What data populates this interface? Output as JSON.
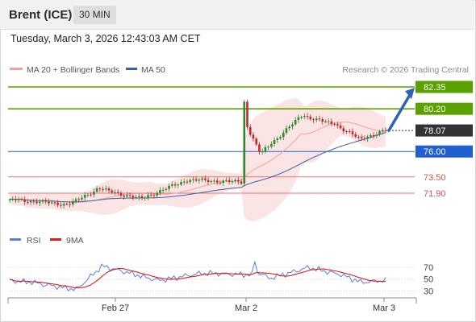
{
  "header": {
    "instrument": "Brent (ICE)",
    "timeframe": "30 MIN",
    "datetime": "Tuesday, March 3, 2026 12:43:03 AM CET"
  },
  "credit": "Research © 2026 Trading Central",
  "colors": {
    "resistance": "#5aa100",
    "pivot": "#1f5fd0",
    "support": "#f07070",
    "current": "#333333",
    "ma20": "#f3a0a0",
    "ma50": "#3b5fa8",
    "bollinger_fill": "#fbe1e1",
    "candle_up": "#2f8a2f",
    "candle_down": "#c0292b",
    "rsi": "#5b7fd8",
    "rsi_ma": "#d42020",
    "arrow": "#2f62b3"
  },
  "chart_data": [
    {
      "type": "candlestick",
      "legend": [
        "MA 20 + Bollinger Bands",
        "MA 50"
      ],
      "legend_placement": "top-left",
      "ylim": [
        69.5,
        84.4
      ],
      "x_ticks": [
        "Feb 27",
        "Mar 2",
        "Mar 3"
      ],
      "levels": [
        {
          "label": "82.35",
          "value": 82.35,
          "role": "resistance",
          "boxed": true
        },
        {
          "label": "80.20",
          "value": 80.2,
          "role": "resistance",
          "boxed": true
        },
        {
          "label": "78.07",
          "value": 78.07,
          "role": "current",
          "boxed": true
        },
        {
          "label": "76.00",
          "value": 76.0,
          "role": "pivot",
          "boxed": true
        },
        {
          "label": "73.50",
          "value": 73.5,
          "role": "support",
          "boxed": false
        },
        {
          "label": "71.90",
          "value": 71.9,
          "role": "support",
          "boxed": false
        }
      ],
      "segments": [
        {
          "n": 20,
          "start": 71.3,
          "end": 70.8
        },
        {
          "n": 10,
          "start": 70.8,
          "end": 72.3
        },
        {
          "n": 14,
          "start": 72.3,
          "end": 71.4
        },
        {
          "n": 16,
          "start": 71.4,
          "end": 73.2
        },
        {
          "n": 18,
          "start": 73.2,
          "end": 73.0
        },
        {
          "n": 1,
          "start": 80.9,
          "end": 78.4
        },
        {
          "n": 5,
          "start": 78.4,
          "end": 76.0
        },
        {
          "n": 14,
          "start": 76.0,
          "end": 79.5
        },
        {
          "n": 10,
          "start": 79.5,
          "end": 78.7
        },
        {
          "n": 9,
          "start": 78.7,
          "end": 77.3
        },
        {
          "n": 9,
          "start": 77.3,
          "end": 78.07
        }
      ],
      "forecast_arrow": {
        "from": 78.07,
        "to": 82.1
      }
    },
    {
      "type": "line",
      "legend": [
        "RSI",
        "9MA"
      ],
      "ylim": [
        24,
        86
      ],
      "y_ticks": [
        70,
        50,
        30
      ],
      "segments": [
        {
          "n": 8,
          "start": 47,
          "end": 45
        },
        {
          "n": 6,
          "start": 45,
          "end": 40
        },
        {
          "n": 10,
          "start": 40,
          "end": 33
        },
        {
          "n": 10,
          "start": 33,
          "end": 71
        },
        {
          "n": 20,
          "start": 71,
          "end": 48
        },
        {
          "n": 16,
          "start": 48,
          "end": 60
        },
        {
          "n": 18,
          "start": 60,
          "end": 57
        },
        {
          "n": 1,
          "start": 80,
          "end": 62
        },
        {
          "n": 5,
          "start": 62,
          "end": 52
        },
        {
          "n": 14,
          "start": 52,
          "end": 69
        },
        {
          "n": 10,
          "start": 69,
          "end": 59
        },
        {
          "n": 9,
          "start": 59,
          "end": 45
        },
        {
          "n": 9,
          "start": 45,
          "end": 48
        }
      ]
    }
  ]
}
